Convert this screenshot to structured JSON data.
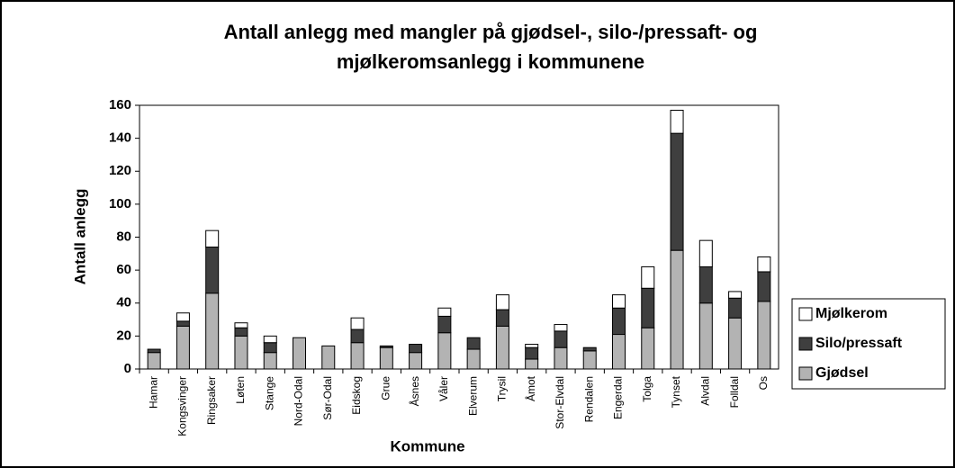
{
  "chart_data": {
    "type": "stacked-bar",
    "title": [
      "Antall anlegg med mangler på gjødsel-, silo-/pressaft- og",
      "mjølkeromsanlegg i kommunene"
    ],
    "ylabel": "Antall anlegg",
    "xlabel": "Kommune",
    "categories": [
      "Hamar",
      "Kongsvinger",
      "Ringsaker",
      "Løten",
      "Stange",
      "Nord-Odal",
      "Sør-Odal",
      "Eidskog",
      "Grue",
      "Åsnes",
      "Våler",
      "Elverum",
      "Trysil",
      "Åmot",
      "Stor-Elvdal",
      "Rendalen",
      "Engerdal",
      "Tolga",
      "Tynset",
      "Alvdal",
      "Folldal",
      "Os"
    ],
    "series": [
      {
        "name": "Gjødsel",
        "color": "#b3b3b3",
        "values": [
          10,
          26,
          46,
          20,
          10,
          19,
          14,
          16,
          13,
          10,
          22,
          12,
          26,
          6,
          13,
          11,
          21,
          25,
          72,
          40,
          31,
          41
        ]
      },
      {
        "name": "Silo/pressaft",
        "color": "#3f3f3f",
        "values": [
          2,
          3,
          28,
          5,
          6,
          0,
          0,
          8,
          1,
          5,
          10,
          7,
          10,
          7,
          10,
          2,
          16,
          24,
          71,
          22,
          12,
          18
        ]
      },
      {
        "name": "Mjølkerom",
        "color": "#ffffff",
        "values": [
          0,
          5,
          10,
          3,
          4,
          0,
          0,
          7,
          0,
          0,
          5,
          0,
          9,
          2,
          4,
          0,
          8,
          13,
          14,
          16,
          4,
          9
        ]
      }
    ],
    "ylim": [
      0,
      160
    ],
    "yticks": [
      0,
      20,
      40,
      60,
      80,
      100,
      120,
      140,
      160
    ]
  }
}
